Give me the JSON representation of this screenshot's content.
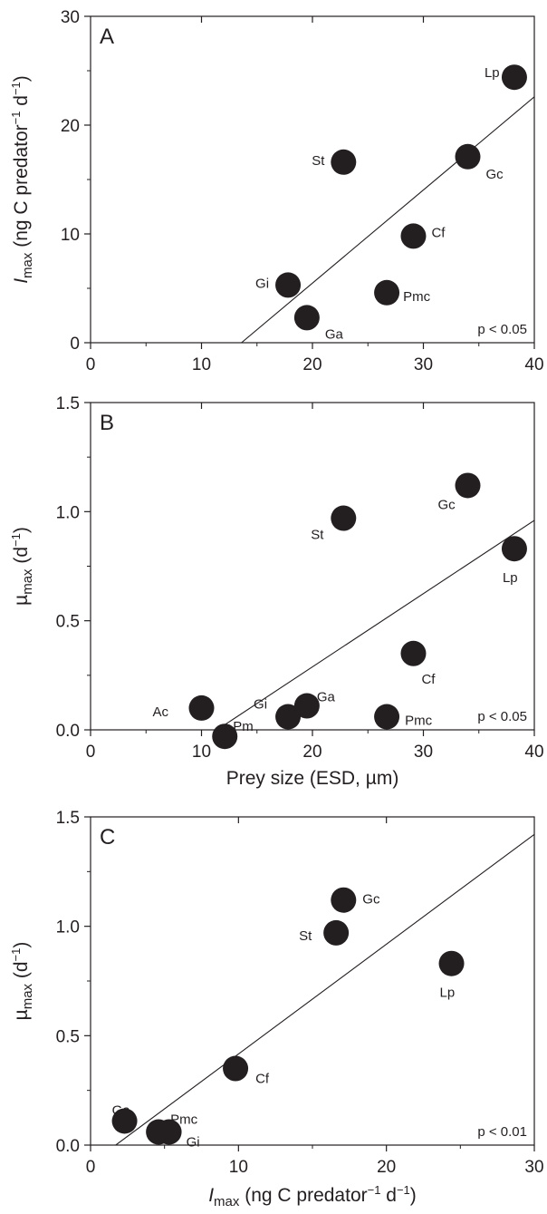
{
  "chart_data": [
    {
      "panel": "A",
      "type": "scatter",
      "xlim": [
        0,
        40
      ],
      "ylim": [
        0,
        30
      ],
      "xticks": [
        "0",
        "10",
        "20",
        "30",
        "40"
      ],
      "yticks": [
        "0",
        "10",
        "20",
        "30"
      ],
      "xlabel": "",
      "ylabel_parts": {
        "italic": "I",
        "sub": "max",
        "text": " (ng C predator",
        "sup": "−1",
        "text2": " d",
        "sup2": "−1",
        "text3": ")"
      },
      "points": [
        {
          "label": "Lp",
          "x": 38.2,
          "y": 24.4
        },
        {
          "label": "St",
          "x": 22.8,
          "y": 16.6
        },
        {
          "label": "Gc",
          "x": 34.0,
          "y": 17.1
        },
        {
          "label": "Cf",
          "x": 29.1,
          "y": 9.8
        },
        {
          "label": "Gi",
          "x": 17.8,
          "y": 5.3
        },
        {
          "label": "Pmc",
          "x": 26.7,
          "y": 4.6
        },
        {
          "label": "Ga",
          "x": 19.5,
          "y": 2.3
        }
      ],
      "fit_line": {
        "x": [
          13.6,
          40
        ],
        "y": [
          0,
          22.6
        ]
      },
      "annotation": "p < 0.05",
      "grid": false
    },
    {
      "panel": "B",
      "type": "scatter",
      "xlim": [
        0,
        40
      ],
      "ylim": [
        0,
        1.5
      ],
      "xticks": [
        "0",
        "10",
        "20",
        "30",
        "40"
      ],
      "yticks": [
        "0.0",
        "0.5",
        "1.0",
        "1.5"
      ],
      "xlabel": "Prey size (ESD, µm)",
      "ylabel_parts": {
        "italic": "",
        "greek": "µ",
        "sub": "max",
        "text": " (d",
        "sup": "−1",
        "text2": ")"
      },
      "points": [
        {
          "label": "Gc",
          "x": 34.0,
          "y": 1.12
        },
        {
          "label": "St",
          "x": 22.8,
          "y": 0.97
        },
        {
          "label": "Lp",
          "x": 38.2,
          "y": 0.83
        },
        {
          "label": "Cf",
          "x": 29.1,
          "y": 0.35
        },
        {
          "label": "Ac",
          "x": 10.0,
          "y": 0.1
        },
        {
          "label": "Pm",
          "x": 12.1,
          "y": -0.03
        },
        {
          "label": "Gi",
          "x": 17.8,
          "y": 0.06
        },
        {
          "label": "Ga",
          "x": 19.5,
          "y": 0.11
        },
        {
          "label": "Pmc",
          "x": 26.7,
          "y": 0.06
        }
      ],
      "fit_line": {
        "x": [
          11.4,
          40
        ],
        "y": [
          0,
          0.96
        ]
      },
      "annotation": "p < 0.05",
      "grid": false
    },
    {
      "panel": "C",
      "type": "scatter",
      "xlim": [
        0,
        30
      ],
      "ylim": [
        0,
        1.5
      ],
      "xticks": [
        "0",
        "10",
        "20",
        "30"
      ],
      "yticks": [
        "0.0",
        "0.5",
        "1.0",
        "1.5"
      ],
      "xlabel_parts": {
        "italic": "I",
        "sub": "max",
        "text": " (ng C predator",
        "sup": "−1",
        "text2": " d",
        "sup2": "−1",
        "text3": ")"
      },
      "ylabel_parts": {
        "italic": "",
        "greek": "µ",
        "sub": "max",
        "text": " (d",
        "sup": "−1",
        "text2": ")"
      },
      "points": [
        {
          "label": "Gc",
          "x": 17.1,
          "y": 1.12
        },
        {
          "label": "St",
          "x": 16.6,
          "y": 0.97
        },
        {
          "label": "Lp",
          "x": 24.4,
          "y": 0.83
        },
        {
          "label": "Cf",
          "x": 9.8,
          "y": 0.35
        },
        {
          "label": "Ga",
          "x": 2.3,
          "y": 0.11
        },
        {
          "label": "Pmc",
          "x": 4.6,
          "y": 0.06
        },
        {
          "label": "Gi",
          "x": 5.3,
          "y": 0.06
        }
      ],
      "fit_line": {
        "x": [
          1.7,
          30
        ],
        "y": [
          0,
          1.42
        ]
      },
      "annotation": "p < 0.01",
      "grid": false
    }
  ]
}
